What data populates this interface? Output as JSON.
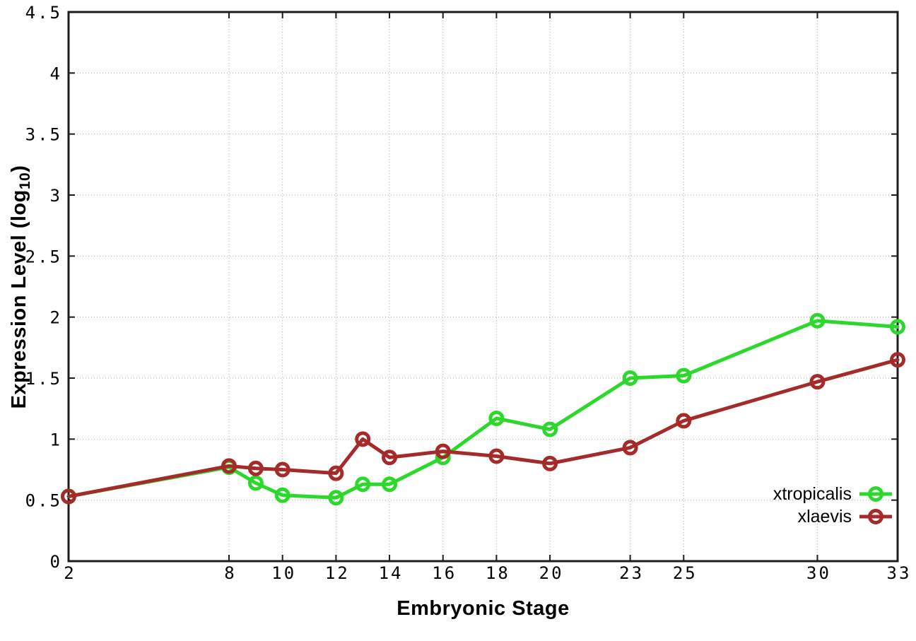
{
  "chart_data": {
    "type": "line",
    "title": "",
    "xlabel": "Embryonic Stage",
    "ylabel": {
      "text": "Expression Level (log",
      "sub": "10",
      "suffix": ")"
    },
    "xlim": [
      2,
      33
    ],
    "ylim": [
      0,
      4.5
    ],
    "xticks": [
      2,
      8,
      10,
      12,
      14,
      16,
      18,
      20,
      23,
      25,
      30,
      33
    ],
    "xtick_labels": [
      "2",
      "8",
      "10",
      "12",
      "14",
      "16",
      "18",
      "20",
      "23",
      "25",
      "30",
      "33"
    ],
    "yticks": [
      0,
      0.5,
      1,
      1.5,
      2,
      2.5,
      3,
      3.5,
      4,
      4.5
    ],
    "ytick_labels": [
      "0",
      "0.5",
      "1",
      "1.5",
      "2",
      "2.5",
      "3",
      "3.5",
      "4",
      "4.5"
    ],
    "grid": true,
    "legend_position": "bottom-right",
    "marker": "open-circle",
    "series": [
      {
        "name": "xtropicalis",
        "color": "#2bd82b",
        "x": [
          2,
          8,
          9,
          10,
          12,
          13,
          14,
          16,
          18,
          20,
          23,
          25,
          30,
          33
        ],
        "values": [
          0.53,
          0.77,
          0.64,
          0.54,
          0.52,
          0.63,
          0.63,
          0.85,
          1.17,
          1.08,
          1.5,
          1.52,
          1.97,
          1.92
        ]
      },
      {
        "name": "xlaevis",
        "color": "#a52a2a",
        "x": [
          2,
          8,
          9,
          10,
          12,
          13,
          14,
          16,
          18,
          20,
          23,
          25,
          30,
          33
        ],
        "values": [
          0.53,
          0.78,
          0.76,
          0.75,
          0.72,
          1.0,
          0.85,
          0.9,
          0.86,
          0.8,
          0.93,
          1.15,
          1.47,
          1.65
        ]
      }
    ]
  },
  "colors": {
    "background": "#ffffff",
    "plot_border": "#1c1c1c",
    "grid": "#aaaaaa",
    "tick": "#1c1c1c",
    "text": "#000000"
  }
}
